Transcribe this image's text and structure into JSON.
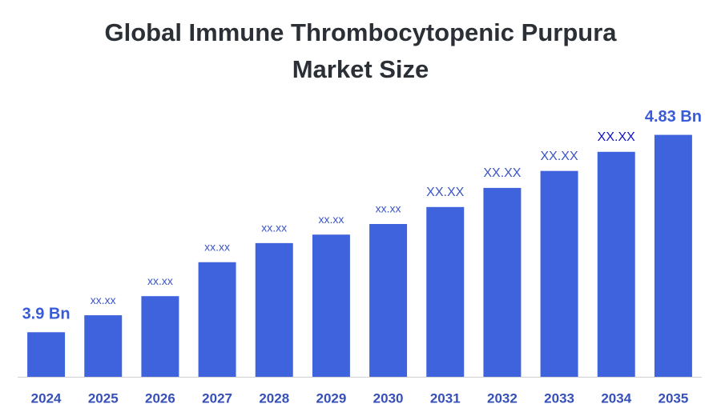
{
  "chart_data": {
    "type": "bar",
    "title": "Global Immune Thrombocytopenic Purpura Market Size",
    "categories": [
      "2024",
      "2025",
      "2026",
      "2027",
      "2028",
      "2029",
      "2030",
      "2031",
      "2032",
      "2033",
      "2034",
      "2035"
    ],
    "values": [
      3.9,
      3.98,
      4.07,
      4.23,
      4.32,
      4.36,
      4.41,
      4.49,
      4.58,
      4.66,
      4.75,
      4.83
    ],
    "value_labels": [
      "3.9 Bn",
      "xx.xx",
      "xx.xx",
      "xx.xx",
      "xx.xx",
      "xx.xx",
      "xx.xx",
      "XX.XX",
      "XX.XX",
      "XX.XX",
      "XX.XX",
      "4.83 Bn"
    ],
    "color": "#3f63dd",
    "ylim": [
      3.69,
      4.9
    ]
  }
}
